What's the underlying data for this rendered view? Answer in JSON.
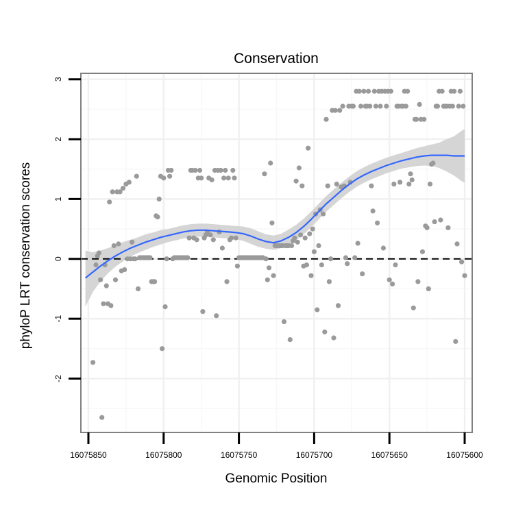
{
  "chart_data": {
    "type": "scatter",
    "title": "Conservation",
    "xlabel": "Genomic Position",
    "ylabel": "phyloP LRT conservation scores",
    "x_reversed": true,
    "xlim": [
      16075855,
      16075595
    ],
    "ylim": [
      -2.9,
      3.1
    ],
    "x_ticks": [
      16075850,
      16075800,
      16075750,
      16075700,
      16075650,
      16075600
    ],
    "x_tick_labels": [
      "16075850",
      "16075800",
      "16075750",
      "16075700",
      "16075650",
      "16075600"
    ],
    "y_ticks": [
      -2,
      -1,
      0,
      1,
      2,
      3
    ],
    "y_tick_labels": [
      "-2",
      "-1",
      "0",
      "1",
      "2",
      "3"
    ],
    "reference_line": {
      "y": 0,
      "style": "dashed"
    },
    "points": [
      [
        16075847,
        -1.73
      ],
      [
        16075845,
        -0.1
      ],
      [
        16075844,
        0.05
      ],
      [
        16075843,
        0.1
      ],
      [
        16075842,
        -0.35
      ],
      [
        16075841,
        -2.65
      ],
      [
        16075840,
        -0.75
      ],
      [
        16075839,
        -0.1
      ],
      [
        16075838,
        -0.45
      ],
      [
        16075837,
        -0.75
      ],
      [
        16075836,
        0.95
      ],
      [
        16075835,
        -0.78
      ],
      [
        16075834,
        1.12
      ],
      [
        16075833,
        0.22
      ],
      [
        16075832,
        -0.35
      ],
      [
        16075831,
        1.12
      ],
      [
        16075830,
        0.25
      ],
      [
        16075829,
        1.12
      ],
      [
        16075828,
        -0.2
      ],
      [
        16075827,
        1.18
      ],
      [
        16075826,
        -0.18
      ],
      [
        16075825,
        1.25
      ],
      [
        16075824,
        0.0
      ],
      [
        16075823,
        1.28
      ],
      [
        16075822,
        0.0
      ],
      [
        16075821,
        0.28
      ],
      [
        16075820,
        0.0
      ],
      [
        16075819,
        0.0
      ],
      [
        16075818,
        1.38
      ],
      [
        16075817,
        -0.5
      ],
      [
        16075816,
        0.02
      ],
      [
        16075815,
        0.02
      ],
      [
        16075814,
        0.02
      ],
      [
        16075813,
        0.02
      ],
      [
        16075812,
        0.02
      ],
      [
        16075811,
        0.02
      ],
      [
        16075810,
        0.02
      ],
      [
        16075809,
        0.02
      ],
      [
        16075808,
        -0.38
      ],
      [
        16075807,
        -0.38
      ],
      [
        16075806,
        -0.38
      ],
      [
        16075805,
        0.72
      ],
      [
        16075804,
        0.7
      ],
      [
        16075803,
        1.0
      ],
      [
        16075802,
        1.38
      ],
      [
        16075801,
        -1.5
      ],
      [
        16075800,
        1.35
      ],
      [
        16075799,
        -0.8
      ],
      [
        16075798,
        0.0
      ],
      [
        16075797,
        1.48
      ],
      [
        16075796,
        1.38
      ],
      [
        16075795,
        1.48
      ],
      [
        16075794,
        0.0
      ],
      [
        16075793,
        0.02
      ],
      [
        16075792,
        0.02
      ],
      [
        16075791,
        0.02
      ],
      [
        16075790,
        0.02
      ],
      [
        16075789,
        0.02
      ],
      [
        16075788,
        0.02
      ],
      [
        16075787,
        0.02
      ],
      [
        16075786,
        0.02
      ],
      [
        16075785,
        0.02
      ],
      [
        16075784,
        0.02
      ],
      [
        16075783,
        0.35
      ],
      [
        16075782,
        1.48
      ],
      [
        16075781,
        1.48
      ],
      [
        16075780,
        0.35
      ],
      [
        16075779,
        1.48
      ],
      [
        16075778,
        0.32
      ],
      [
        16075777,
        1.35
      ],
      [
        16075776,
        1.48
      ],
      [
        16075775,
        1.35
      ],
      [
        16075774,
        -0.88
      ],
      [
        16075773,
        0.35
      ],
      [
        16075772,
        0.4
      ],
      [
        16075771,
        0.45
      ],
      [
        16075770,
        1.35
      ],
      [
        16075769,
        0.4
      ],
      [
        16075768,
        1.32
      ],
      [
        16075767,
        0.32
      ],
      [
        16075766,
        1.48
      ],
      [
        16075765,
        -0.95
      ],
      [
        16075764,
        1.48
      ],
      [
        16075763,
        0.45
      ],
      [
        16075762,
        1.48
      ],
      [
        16075761,
        0.18
      ],
      [
        16075760,
        1.35
      ],
      [
        16075759,
        1.48
      ],
      [
        16075758,
        -0.38
      ],
      [
        16075757,
        1.35
      ],
      [
        16075756,
        0.32
      ],
      [
        16075755,
        0.35
      ],
      [
        16075754,
        1.48
      ],
      [
        16075753,
        1.35
      ],
      [
        16075752,
        0.35
      ],
      [
        16075751,
        -0.12
      ],
      [
        16075750,
        0.02
      ],
      [
        16075749,
        0.02
      ],
      [
        16075748,
        0.02
      ],
      [
        16075747,
        0.02
      ],
      [
        16075746,
        0.02
      ],
      [
        16075745,
        0.02
      ],
      [
        16075744,
        0.02
      ],
      [
        16075743,
        0.02
      ],
      [
        16075742,
        0.02
      ],
      [
        16075741,
        0.02
      ],
      [
        16075740,
        0.02
      ],
      [
        16075739,
        0.02
      ],
      [
        16075738,
        0.02
      ],
      [
        16075737,
        0.02
      ],
      [
        16075736,
        0.02
      ],
      [
        16075735,
        0.02
      ],
      [
        16075734,
        0.02
      ],
      [
        16075733,
        1.42
      ],
      [
        16075732,
        0.0
      ],
      [
        16075731,
        -0.35
      ],
      [
        16075730,
        -0.15
      ],
      [
        16075729,
        1.6
      ],
      [
        16075728,
        0.6
      ],
      [
        16075727,
        -0.28
      ],
      [
        16075726,
        0.22
      ],
      [
        16075725,
        0.22
      ],
      [
        16075724,
        0.22
      ],
      [
        16075723,
        0.22
      ],
      [
        16075722,
        0.22
      ],
      [
        16075721,
        0.22
      ],
      [
        16075720,
        -1.05
      ],
      [
        16075719,
        0.22
      ],
      [
        16075718,
        0.22
      ],
      [
        16075717,
        0.22
      ],
      [
        16075716,
        -1.35
      ],
      [
        16075715,
        0.22
      ],
      [
        16075714,
        0.3
      ],
      [
        16075713,
        0.35
      ],
      [
        16075712,
        1.3
      ],
      [
        16075711,
        0.28
      ],
      [
        16075710,
        1.52
      ],
      [
        16075709,
        0.4
      ],
      [
        16075708,
        1.22
      ],
      [
        16075707,
        -0.12
      ],
      [
        16075706,
        0.35
      ],
      [
        16075705,
        -0.1
      ],
      [
        16075704,
        1.85
      ],
      [
        16075703,
        0.42
      ],
      [
        16075702,
        -0.28
      ],
      [
        16075701,
        0.5
      ],
      [
        16075700,
        0.12
      ],
      [
        16075699,
        0.75
      ],
      [
        16075698,
        -0.85
      ],
      [
        16075697,
        0.22
      ],
      [
        16075696,
        0.82
      ],
      [
        16075695,
        -0.1
      ],
      [
        16075694,
        0.75
      ],
      [
        16075693,
        -1.22
      ],
      [
        16075692,
        2.33
      ],
      [
        16075691,
        1.22
      ],
      [
        16075690,
        -0.38
      ],
      [
        16075689,
        0.0
      ],
      [
        16075688,
        2.48
      ],
      [
        16075687,
        -1.32
      ],
      [
        16075686,
        2.48
      ],
      [
        16075685,
        1.25
      ],
      [
        16075684,
        -0.78
      ],
      [
        16075683,
        2.48
      ],
      [
        16075682,
        1.2
      ],
      [
        16075681,
        2.55
      ],
      [
        16075680,
        1.22
      ],
      [
        16075679,
        0.02
      ],
      [
        16075678,
        -0.08
      ],
      [
        16075677,
        2.55
      ],
      [
        16075676,
        1.28
      ],
      [
        16075675,
        2.55
      ],
      [
        16075674,
        2.55
      ],
      [
        16075673,
        0.02
      ],
      [
        16075672,
        2.8
      ],
      [
        16075671,
        0.26
      ],
      [
        16075670,
        2.8
      ],
      [
        16075669,
        2.55
      ],
      [
        16075668,
        -0.25
      ],
      [
        16075667,
        2.8
      ],
      [
        16075666,
        2.55
      ],
      [
        16075665,
        2.55
      ],
      [
        16075664,
        2.8
      ],
      [
        16075663,
        2.55
      ],
      [
        16075662,
        1.22
      ],
      [
        16075661,
        0.8
      ],
      [
        16075660,
        2.8
      ],
      [
        16075659,
        2.55
      ],
      [
        16075658,
        0.6
      ],
      [
        16075657,
        2.8
      ],
      [
        16075656,
        2.55
      ],
      [
        16075655,
        2.8
      ],
      [
        16075654,
        0.18
      ],
      [
        16075653,
        2.8
      ],
      [
        16075652,
        2.55
      ],
      [
        16075651,
        2.8
      ],
      [
        16075650,
        -0.35
      ],
      [
        16075649,
        2.8
      ],
      [
        16075648,
        -0.42
      ],
      [
        16075647,
        1.25
      ],
      [
        16075646,
        -0.1
      ],
      [
        16075645,
        2.55
      ],
      [
        16075644,
        2.55
      ],
      [
        16075643,
        1.28
      ],
      [
        16075642,
        2.55
      ],
      [
        16075641,
        2.55
      ],
      [
        16075640,
        2.8
      ],
      [
        16075639,
        2.55
      ],
      [
        16075638,
        2.8
      ],
      [
        16075637,
        1.25
      ],
      [
        16075636,
        1.42
      ],
      [
        16075635,
        1.32
      ],
      [
        16075634,
        -0.82
      ],
      [
        16075633,
        2.33
      ],
      [
        16075632,
        2.33
      ],
      [
        16075631,
        -0.38
      ],
      [
        16075630,
        2.58
      ],
      [
        16075629,
        2.33
      ],
      [
        16075628,
        0.12
      ],
      [
        16075627,
        2.33
      ],
      [
        16075626,
        0.55
      ],
      [
        16075625,
        0.52
      ],
      [
        16075624,
        -0.5
      ],
      [
        16075623,
        1.25
      ],
      [
        16075622,
        1.58
      ],
      [
        16075621,
        1.6
      ],
      [
        16075620,
        0.62
      ],
      [
        16075619,
        2.55
      ],
      [
        16075618,
        2.55
      ],
      [
        16075617,
        2.8
      ],
      [
        16075616,
        0.65
      ],
      [
        16075615,
        2.8
      ],
      [
        16075614,
        2.55
      ],
      [
        16075613,
        2.55
      ],
      [
        16075612,
        2.55
      ],
      [
        16075611,
        0.52
      ],
      [
        16075610,
        2.55
      ],
      [
        16075609,
        2.8
      ],
      [
        16075608,
        2.55
      ],
      [
        16075607,
        2.8
      ],
      [
        16075606,
        -1.38
      ],
      [
        16075605,
        0.25
      ],
      [
        16075604,
        2.55
      ],
      [
        16075603,
        2.8
      ],
      [
        16075602,
        -0.05
      ],
      [
        16075601,
        2.55
      ],
      [
        16075600,
        -0.28
      ]
    ],
    "smooth_line": {
      "x": [
        16075852,
        16075847,
        16075842,
        16075837,
        16075832,
        16075827,
        16075822,
        16075817,
        16075812,
        16075807,
        16075802,
        16075797,
        16075792,
        16075787,
        16075782,
        16075777,
        16075772,
        16075767,
        16075762,
        16075757,
        16075752,
        16075747,
        16075742,
        16075737,
        16075732,
        16075727,
        16075722,
        16075717,
        16075712,
        16075707,
        16075702,
        16075697,
        16075692,
        16075687,
        16075682,
        16075677,
        16075672,
        16075667,
        16075662,
        16075657,
        16075652,
        16075647,
        16075642,
        16075637,
        16075632,
        16075627,
        16075622,
        16075617,
        16075612,
        16075607,
        16075602,
        16075600
      ],
      "y": [
        -0.32,
        -0.22,
        -0.12,
        -0.03,
        0.05,
        0.12,
        0.18,
        0.23,
        0.28,
        0.32,
        0.36,
        0.39,
        0.42,
        0.45,
        0.47,
        0.48,
        0.48,
        0.47,
        0.46,
        0.45,
        0.44,
        0.42,
        0.38,
        0.33,
        0.29,
        0.27,
        0.3,
        0.36,
        0.44,
        0.54,
        0.66,
        0.79,
        0.92,
        1.03,
        1.14,
        1.24,
        1.33,
        1.4,
        1.46,
        1.51,
        1.56,
        1.6,
        1.64,
        1.67,
        1.7,
        1.72,
        1.73,
        1.73,
        1.73,
        1.72,
        1.72,
        1.72
      ],
      "ci_lower": [
        -0.8,
        -0.55,
        -0.38,
        -0.24,
        -0.13,
        -0.04,
        0.04,
        0.1,
        0.15,
        0.2,
        0.24,
        0.28,
        0.31,
        0.34,
        0.36,
        0.37,
        0.37,
        0.36,
        0.35,
        0.34,
        0.33,
        0.3,
        0.25,
        0.2,
        0.17,
        0.15,
        0.18,
        0.23,
        0.31,
        0.41,
        0.53,
        0.66,
        0.79,
        0.9,
        1.01,
        1.11,
        1.2,
        1.27,
        1.33,
        1.38,
        1.43,
        1.47,
        1.51,
        1.53,
        1.55,
        1.56,
        1.55,
        1.52,
        1.46,
        1.39,
        1.3,
        1.27
      ],
      "ci_upper": [
        0.14,
        0.11,
        0.14,
        0.18,
        0.23,
        0.28,
        0.32,
        0.36,
        0.41,
        0.44,
        0.48,
        0.5,
        0.53,
        0.56,
        0.58,
        0.59,
        0.59,
        0.58,
        0.57,
        0.56,
        0.55,
        0.54,
        0.51,
        0.46,
        0.41,
        0.39,
        0.42,
        0.49,
        0.57,
        0.67,
        0.79,
        0.92,
        1.05,
        1.16,
        1.27,
        1.37,
        1.46,
        1.53,
        1.59,
        1.64,
        1.69,
        1.73,
        1.77,
        1.81,
        1.85,
        1.88,
        1.91,
        1.94,
        2.0,
        2.05,
        2.14,
        2.17
      ]
    },
    "colors": {
      "points": "#9a9a9a",
      "smooth_line": "#3366ff",
      "ci_band": "#d3d3d3",
      "panel_border": "#808080",
      "grid_major": "#f0f0f0",
      "grid_minor": "#f8f8f8",
      "axis_ticks": "#000000"
    }
  }
}
